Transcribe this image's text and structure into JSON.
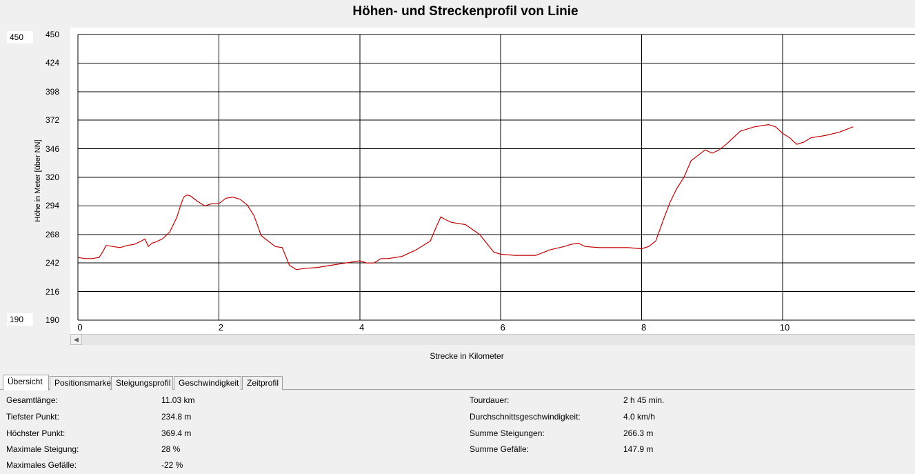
{
  "title": "Höhen- und Streckenprofil von Linie",
  "y_range_boxes": {
    "max": "450",
    "min": "190"
  },
  "chart_data": {
    "type": "line",
    "title": "Höhen- und Streckenprofil von Linie",
    "xlabel": "Strecke in Kilometer",
    "ylabel": "Höhe in Meter [über NN]",
    "xlim": [
      0,
      11.9
    ],
    "ylim": [
      190,
      450
    ],
    "x_ticks": [
      "0",
      "2",
      "4",
      "6",
      "8",
      "10"
    ],
    "y_ticks": [
      "450",
      "424",
      "398",
      "372",
      "346",
      "320",
      "294",
      "268",
      "242",
      "216",
      "190"
    ],
    "grid": true,
    "line_color": "#c00000",
    "series": [
      {
        "x": [
          0,
          0.1,
          0.2,
          0.3,
          0.35,
          0.4,
          0.5,
          0.6,
          0.7,
          0.8,
          0.9,
          0.95,
          1.0,
          1.05,
          1.1,
          1.2,
          1.3,
          1.4,
          1.45,
          1.5,
          1.55,
          1.6,
          1.7,
          1.8,
          1.9,
          2.0,
          2.1,
          2.2,
          2.3,
          2.4,
          2.5,
          2.6,
          2.7,
          2.8,
          2.9,
          3.0,
          3.1,
          3.2,
          3.4,
          3.6,
          3.8,
          4.0,
          4.1,
          4.2,
          4.3,
          4.4,
          4.6,
          4.8,
          5.0,
          5.1,
          5.15,
          5.2,
          5.3,
          5.5,
          5.7,
          5.9,
          6.0,
          6.2,
          6.4,
          6.5,
          6.7,
          6.9,
          7.0,
          7.1,
          7.2,
          7.4,
          7.6,
          7.8,
          8.0,
          8.1,
          8.2,
          8.3,
          8.4,
          8.5,
          8.6,
          8.7,
          8.8,
          8.9,
          9.0,
          9.1,
          9.2,
          9.4,
          9.6,
          9.8,
          9.9,
          10.0,
          10.1,
          10.2,
          10.3,
          10.4,
          10.6,
          10.8,
          11.0
        ],
        "y": [
          247,
          246,
          246,
          247,
          252,
          258,
          257,
          256,
          258,
          259,
          262,
          264,
          257,
          260,
          261,
          264,
          270,
          283,
          293,
          302,
          304,
          303,
          298,
          294,
          296,
          296,
          301,
          302,
          300,
          295,
          285,
          267,
          262,
          257,
          256,
          240,
          236,
          237,
          238,
          240,
          242,
          244,
          242,
          242,
          246,
          246,
          248,
          254,
          262,
          277,
          284,
          282,
          279,
          277,
          268,
          252,
          250,
          249,
          249,
          249,
          254,
          257,
          259,
          260,
          257,
          256,
          256,
          256,
          255,
          257,
          262,
          280,
          297,
          310,
          320,
          335,
          340,
          345,
          342,
          345,
          350,
          362,
          366,
          368,
          366,
          360,
          356,
          350,
          352,
          356,
          358,
          361,
          366
        ]
      }
    ]
  },
  "tabs": [
    {
      "label": "Übersicht",
      "active": true
    },
    {
      "label": "Positionsmarke",
      "active": false
    },
    {
      "label": "Steigungsprofil",
      "active": false
    },
    {
      "label": "Geschwindigkeit",
      "active": false
    },
    {
      "label": "Zeitprofil",
      "active": false
    }
  ],
  "stats_left": [
    {
      "label": "Gesamtlänge:",
      "value": "11.03 km"
    },
    {
      "label": "Tiefster Punkt:",
      "value": "234.8 m"
    },
    {
      "label": "Höchster Punkt:",
      "value": "369.4 m"
    },
    {
      "label": "Maximale Steigung:",
      "value": "28 %"
    },
    {
      "label": "Maximales Gefälle:",
      "value": "-22 %"
    }
  ],
  "stats_right": [
    {
      "label": "Tourdauer:",
      "value": "2 h 45 min."
    },
    {
      "label": "Durchschnittsgeschwindigkeit:",
      "value": "4.0 km/h"
    },
    {
      "label": "Summe Steigungen:",
      "value": "266.3 m"
    },
    {
      "label": "Summe Gefälle:",
      "value": "147.9 m"
    }
  ]
}
